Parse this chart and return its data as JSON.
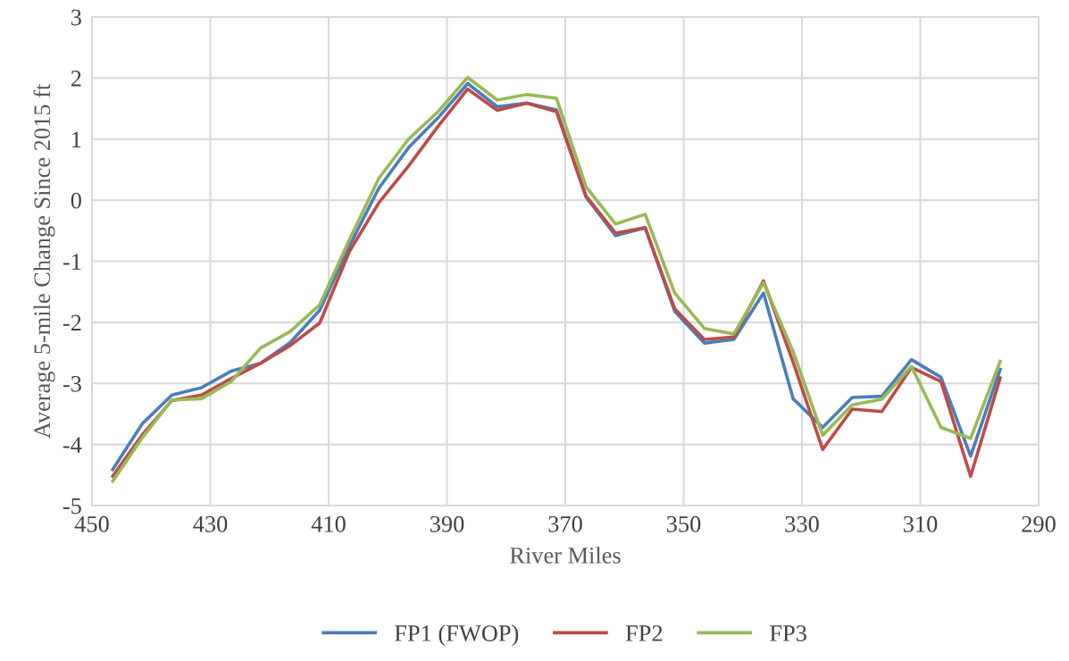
{
  "chart_data": {
    "type": "line",
    "xlabel": "River Miles",
    "ylabel": "Average 5-mile Change Since 2015 ft",
    "x": [
      446.5,
      441.5,
      436.5,
      431.5,
      426.5,
      421.5,
      416.5,
      411.5,
      406.5,
      401.5,
      396.5,
      391.5,
      386.5,
      381.5,
      376.5,
      371.5,
      366.5,
      361.5,
      356.5,
      351.5,
      346.5,
      341.5,
      336.5,
      331.5,
      326.5,
      321.5,
      316.5,
      311.5,
      306.5,
      301.5,
      296.5
    ],
    "series": [
      {
        "name": "FP1 (FWOP)",
        "color": "#4a7ebb",
        "values": [
          -4.41,
          -3.66,
          -3.19,
          -3.07,
          -2.8,
          -2.67,
          -2.33,
          -1.8,
          -0.75,
          0.2,
          0.86,
          1.35,
          1.91,
          1.53,
          1.59,
          1.48,
          0.05,
          -0.58,
          -0.45,
          -1.82,
          -2.34,
          -2.28,
          -1.52,
          -3.25,
          -3.72,
          -3.23,
          -3.21,
          -2.61,
          -2.9,
          -4.19,
          -2.77
        ]
      },
      {
        "name": "FP2",
        "color": "#be4b48",
        "values": [
          -4.52,
          -3.84,
          -3.28,
          -3.19,
          -2.92,
          -2.67,
          -2.38,
          -2.01,
          -0.84,
          -0.04,
          0.56,
          1.21,
          1.82,
          1.47,
          1.59,
          1.45,
          0.07,
          -0.54,
          -0.45,
          -1.78,
          -2.28,
          -2.24,
          -1.32,
          -2.65,
          -4.08,
          -3.42,
          -3.46,
          -2.74,
          -2.97,
          -4.52,
          -2.91
        ]
      },
      {
        "name": "FP3",
        "color": "#98b954",
        "values": [
          -4.6,
          -3.89,
          -3.27,
          -3.25,
          -2.97,
          -2.42,
          -2.15,
          -1.71,
          -0.65,
          0.36,
          1.0,
          1.45,
          2.01,
          1.64,
          1.73,
          1.67,
          0.22,
          -0.39,
          -0.23,
          -1.52,
          -2.1,
          -2.19,
          -1.35,
          -2.48,
          -3.85,
          -3.35,
          -3.26,
          -2.72,
          -3.72,
          -3.9,
          -2.64
        ]
      }
    ],
    "xlim": [
      450,
      290
    ],
    "xticks": [
      450,
      430,
      410,
      390,
      370,
      350,
      330,
      310,
      290
    ],
    "ylim": [
      -5,
      3
    ],
    "yticks": [
      -5,
      -4,
      -3,
      -2,
      -1,
      0,
      1,
      2,
      3
    ],
    "grid": true,
    "legend": "bottom",
    "marker": "none",
    "line_style": "solid"
  }
}
